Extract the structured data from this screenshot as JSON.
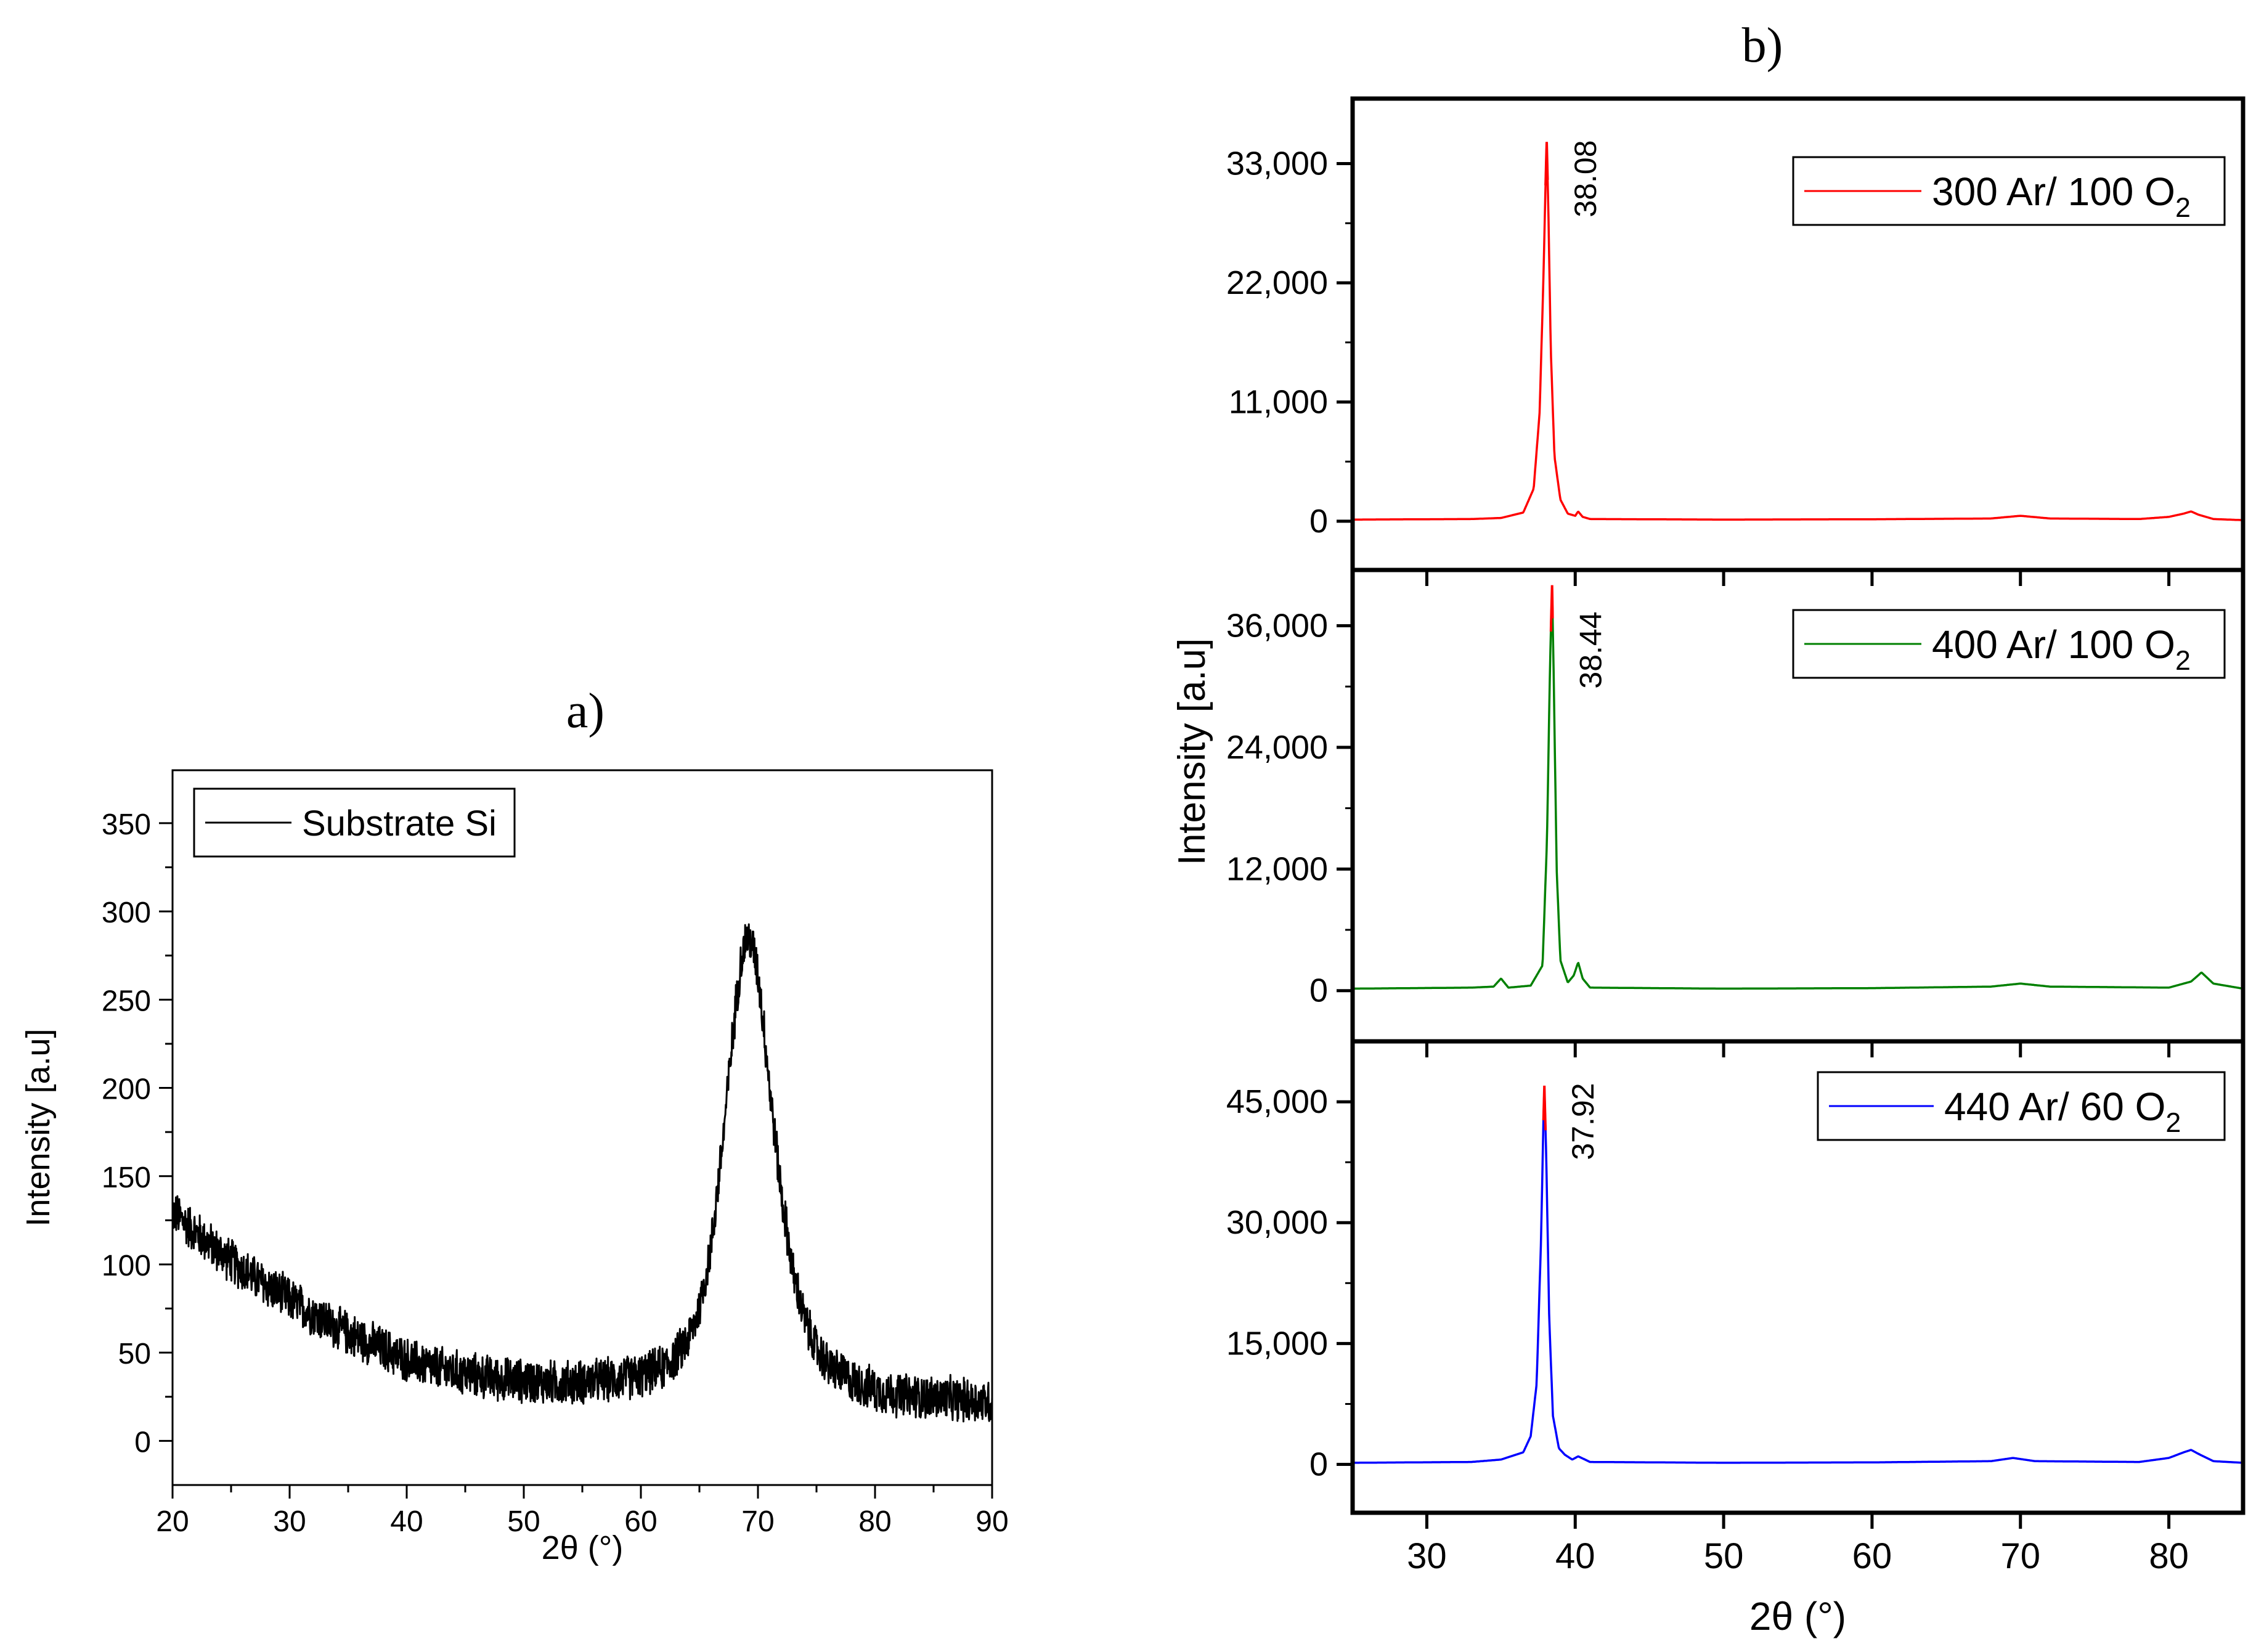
{
  "panel_a_label": "a)",
  "panel_b_label": "b)",
  "colors": {
    "axes": "#000000",
    "substrate": "#000000",
    "red": "#ff0000",
    "green": "#008000",
    "blue": "#0000ff",
    "peak_top": "#ff0000"
  },
  "chart_data": [
    {
      "id": "a",
      "type": "line",
      "title": "a)",
      "xlabel": "2θ (°)",
      "ylabel": "Intensity [a.u]",
      "xlim": [
        20,
        90
      ],
      "ylim": [
        -25,
        380
      ],
      "xticks": [
        20,
        30,
        40,
        50,
        60,
        70,
        80,
        90
      ],
      "xtick_labels": [
        "20",
        "30",
        "40",
        "50",
        "60",
        "70",
        "80",
        "90"
      ],
      "yticks": [
        0,
        50,
        100,
        150,
        200,
        250,
        300,
        350
      ],
      "ytick_labels": [
        "0",
        "50",
        "100",
        "150",
        "200",
        "250",
        "300",
        "350"
      ],
      "legend": "top-left",
      "series": [
        {
          "name": "Substrate Si",
          "color": "#000000",
          "noise": 14,
          "x": [
            20,
            22,
            24,
            26,
            28,
            30,
            32,
            34,
            36,
            38,
            40,
            42,
            44,
            46,
            48,
            50,
            52,
            54,
            56,
            58,
            60,
            62,
            63,
            64,
            65,
            66,
            67,
            68,
            68.5,
            69,
            69.5,
            70,
            70.5,
            71,
            72,
            73,
            74,
            75,
            76,
            78,
            80,
            82,
            84,
            86,
            88,
            90
          ],
          "y": [
            130,
            118,
            107,
            97,
            88,
            80,
            72,
            64,
            58,
            52,
            46,
            42,
            39,
            37,
            35,
            34,
            33,
            33,
            34,
            35,
            37,
            42,
            48,
            57,
            75,
            110,
            170,
            240,
            270,
            285,
            282,
            265,
            235,
            200,
            140,
            95,
            68,
            52,
            43,
            34,
            29,
            26,
            25,
            24,
            23,
            22
          ]
        }
      ]
    },
    {
      "id": "b1",
      "type": "line",
      "title": "b)",
      "xlabel": "",
      "ylabel": "Intensity [a.u]",
      "xlim": [
        25,
        85
      ],
      "ylim": [
        -4500,
        39000
      ],
      "xticks": [
        30,
        40,
        50,
        60,
        70,
        80
      ],
      "yticks": [
        0,
        11000,
        22000,
        33000
      ],
      "ytick_labels": [
        "0",
        "11,000",
        "22,000",
        "33,000"
      ],
      "legend": "top-right",
      "series": [
        {
          "name": "300 Ar/ 100 O",
          "name_sub": "2",
          "color": "#ff0000",
          "x": [
            25,
            33,
            35,
            36.5,
            37.2,
            37.6,
            37.85,
            38.0,
            38.08,
            38.2,
            38.35,
            38.6,
            39.0,
            39.5,
            40.0,
            40.2,
            40.5,
            41,
            50,
            60,
            68,
            70,
            72,
            78,
            80,
            81,
            81.5,
            82,
            83,
            85
          ],
          "y": [
            150,
            200,
            300,
            800,
            3000,
            10000,
            22000,
            31000,
            35000,
            28000,
            16000,
            6000,
            2000,
            700,
            500,
            900,
            400,
            200,
            150,
            180,
            250,
            500,
            250,
            200,
            400,
            700,
            900,
            600,
            200,
            100
          ]
        }
      ],
      "peak_label": "38.08",
      "peak_x": 38.08
    },
    {
      "id": "b2",
      "type": "line",
      "xlabel": "",
      "ylabel": "Intensity [a.u]",
      "xlim": [
        25,
        85
      ],
      "ylim": [
        -5000,
        41500
      ],
      "xticks": [
        30,
        40,
        50,
        60,
        70,
        80
      ],
      "yticks": [
        0,
        12000,
        24000,
        36000
      ],
      "ytick_labels": [
        "0",
        "12,000",
        "24,000",
        "36,000"
      ],
      "legend": "top-right",
      "series": [
        {
          "name": "400 Ar/ 100 O",
          "name_sub": "2",
          "color": "#008000",
          "x": [
            25,
            33,
            34.5,
            35,
            35.5,
            37,
            37.8,
            38.1,
            38.3,
            38.44,
            38.55,
            38.75,
            39.0,
            39.5,
            39.9,
            40.2,
            40.5,
            41,
            50,
            60,
            68,
            70,
            72,
            80,
            81.5,
            82.2,
            83,
            85
          ],
          "y": [
            200,
            300,
            400,
            1200,
            300,
            500,
            2500,
            15000,
            32000,
            40000,
            31000,
            12000,
            3000,
            800,
            1500,
            2800,
            1200,
            300,
            200,
            250,
            400,
            700,
            400,
            300,
            900,
            1800,
            700,
            200
          ]
        }
      ],
      "peak_label": "38.44",
      "peak_x": 38.44
    },
    {
      "id": "b3",
      "type": "line",
      "xlabel": "2θ (°)",
      "ylabel": "Intensity [a.u]",
      "xlim": [
        25,
        85
      ],
      "ylim": [
        -6000,
        52500
      ],
      "xticks": [
        30,
        40,
        50,
        60,
        70,
        80
      ],
      "xtick_labels": [
        "30",
        "40",
        "50",
        "60",
        "70",
        "80"
      ],
      "yticks": [
        0,
        15000,
        30000,
        45000
      ],
      "ytick_labels": [
        "0",
        "15,000",
        "30,000",
        "45,000"
      ],
      "legend": "top-right",
      "series": [
        {
          "name": "440 Ar/ 60 O",
          "name_sub": "2",
          "color": "#0000ff",
          "x": [
            25,
            33,
            35,
            36.5,
            37.0,
            37.4,
            37.7,
            37.85,
            37.92,
            38.05,
            38.25,
            38.5,
            38.9,
            39.3,
            39.8,
            40.2,
            41,
            50,
            60,
            68,
            69.5,
            71,
            78,
            80,
            81,
            81.5,
            82,
            83,
            85
          ],
          "y": [
            200,
            300,
            600,
            1500,
            3500,
            10000,
            28000,
            42000,
            47000,
            38000,
            18000,
            6000,
            2000,
            1200,
            600,
            1000,
            300,
            200,
            250,
            400,
            800,
            400,
            300,
            800,
            1500,
            1800,
            1300,
            400,
            200
          ]
        }
      ],
      "peak_label": "37.92",
      "peak_x": 37.92
    }
  ]
}
